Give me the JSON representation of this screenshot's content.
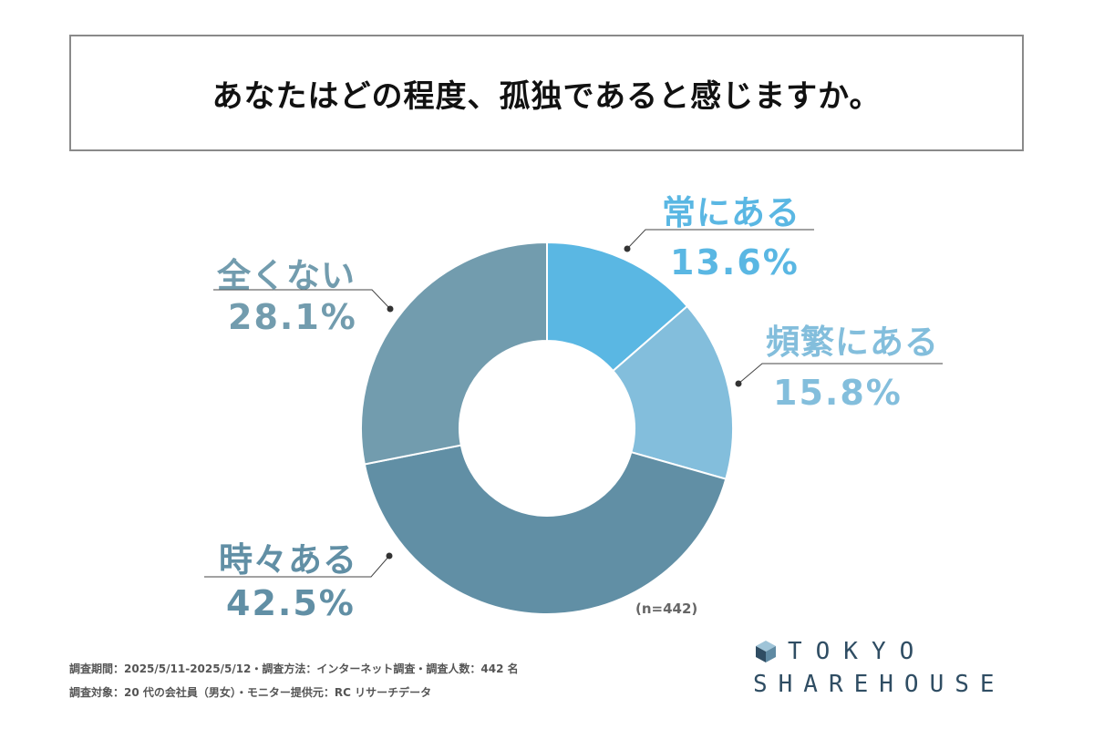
{
  "title": "あなたはどの程度、孤独であると感じますか。",
  "note": "(n=442)",
  "footer": {
    "line1": "調査期間：2025/5/11-2025/5/12・調査方法：インターネット調査・調査人数：442 名",
    "line2": "調査対象：20 代の会社員（男女）・モニター提供元：RC リサーチデータ"
  },
  "logo": {
    "line1": "TOKYO",
    "line2": "SHAREHOUSE",
    "icon": "house-cube-icon"
  },
  "chart_data": {
    "type": "pie",
    "subtype": "donut",
    "categories": [
      "常にある",
      "頻繁にある",
      "時々ある",
      "全くない"
    ],
    "values": [
      13.6,
      15.8,
      42.5,
      28.1
    ],
    "labels": [
      "13.6%",
      "15.8%",
      "42.5%",
      "28.1%"
    ],
    "colors": [
      "#5ab7e3",
      "#83bedc",
      "#618fa5",
      "#729cae"
    ],
    "start": "12 o'clock",
    "direction": "clockwise",
    "legend": "none (callout labels)"
  }
}
